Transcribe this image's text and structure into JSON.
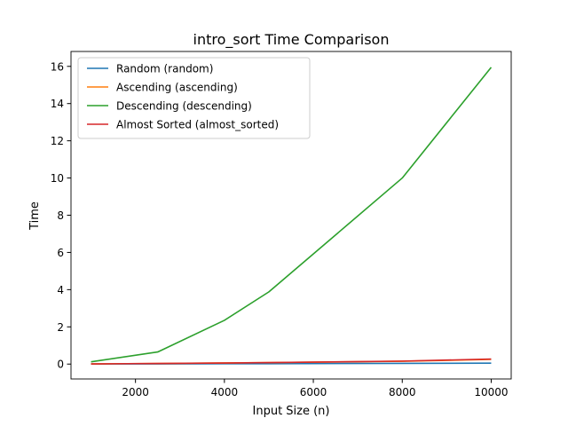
{
  "chart_data": {
    "type": "line",
    "title": "intro_sort Time Comparison",
    "xlabel": "Input Size (n)",
    "ylabel": "Time",
    "x": [
      1000,
      2500,
      4000,
      5000,
      8000,
      10000
    ],
    "xlim": [
      550,
      10450
    ],
    "ylim": [
      -0.8,
      16.8
    ],
    "xticks": [
      2000,
      4000,
      6000,
      8000,
      10000
    ],
    "yticks": [
      0,
      2,
      4,
      6,
      8,
      10,
      12,
      14,
      16
    ],
    "grid": false,
    "legend_placement": "top-left",
    "series": [
      {
        "name": "Random (random)",
        "color": "#1f77b4",
        "values": [
          0.003,
          0.01,
          0.018,
          0.022,
          0.04,
          0.05
        ]
      },
      {
        "name": "Ascending (ascending)",
        "color": "#ff7f0e",
        "values": [
          0.01,
          0.03,
          0.06,
          0.08,
          0.15,
          0.25
        ]
      },
      {
        "name": "Descending (descending)",
        "color": "#2ca02c",
        "values": [
          0.12,
          0.65,
          2.35,
          3.88,
          10.0,
          15.95
        ]
      },
      {
        "name": "Almost Sorted (almost_sorted)",
        "color": "#d62728",
        "values": [
          0.01,
          0.03,
          0.055,
          0.08,
          0.16,
          0.27
        ]
      }
    ]
  }
}
